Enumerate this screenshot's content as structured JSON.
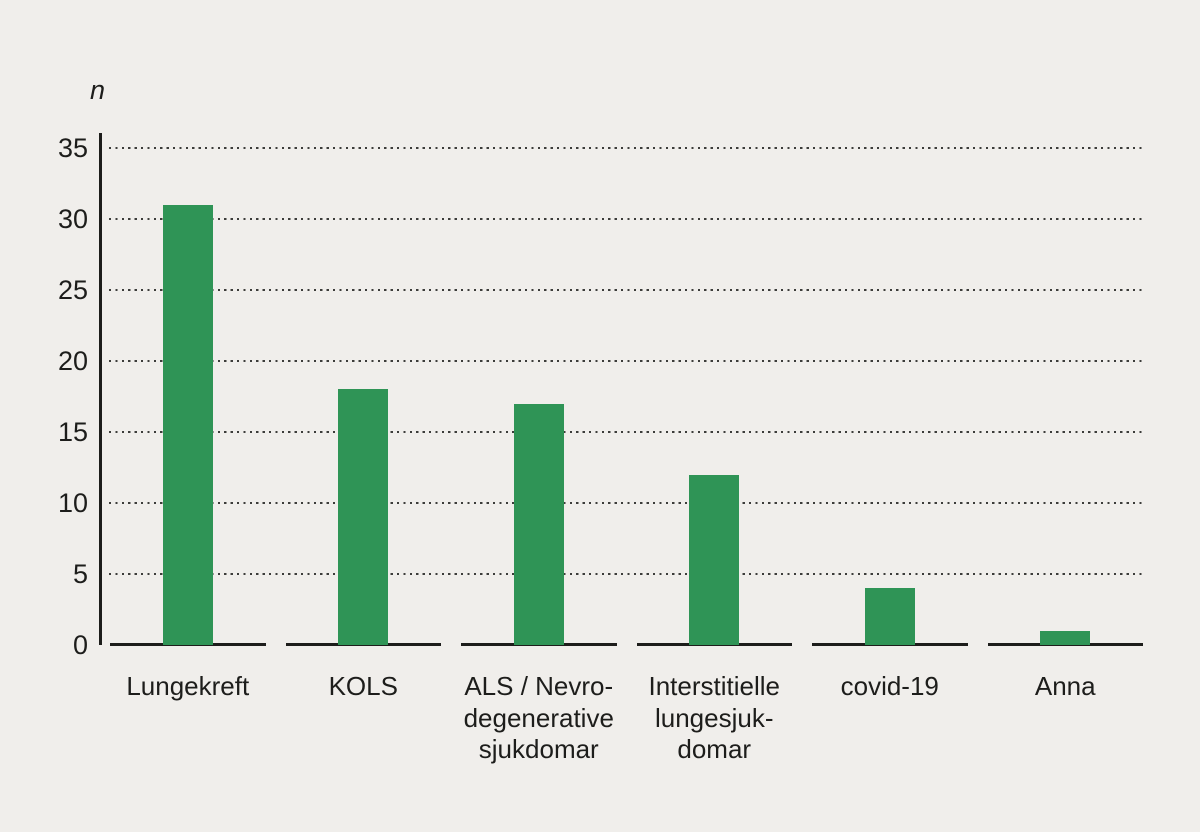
{
  "chart_data": {
    "type": "bar",
    "title": "",
    "ylabel": "n",
    "xlabel": "",
    "categories": [
      "Lungekreft",
      "KOLS",
      "ALS / Nevro-degenerative sjukdomar",
      "Interstitielle lungesjuk-domar",
      "covid-19",
      "Anna"
    ],
    "category_lines": [
      [
        "Lungekreft"
      ],
      [
        "KOLS"
      ],
      [
        "ALS / Nevro-",
        "degenerative",
        "sjukdomar"
      ],
      [
        "Interstitielle",
        "lungesjuk-",
        "domar"
      ],
      [
        "covid-19"
      ],
      [
        "Anna"
      ]
    ],
    "values": [
      31,
      18,
      17,
      12,
      4,
      1
    ],
    "ylim": [
      0,
      35
    ],
    "yticks": [
      0,
      5,
      10,
      15,
      20,
      25,
      30,
      35
    ],
    "grid": "horizontal-dotted",
    "legend": "none",
    "colors": {
      "bar": "#2f9456",
      "background": "#f0eeeb",
      "axis": "#1d1d1b",
      "grid_dots": "#3c3c3a",
      "text": "#1d1d1b"
    }
  }
}
